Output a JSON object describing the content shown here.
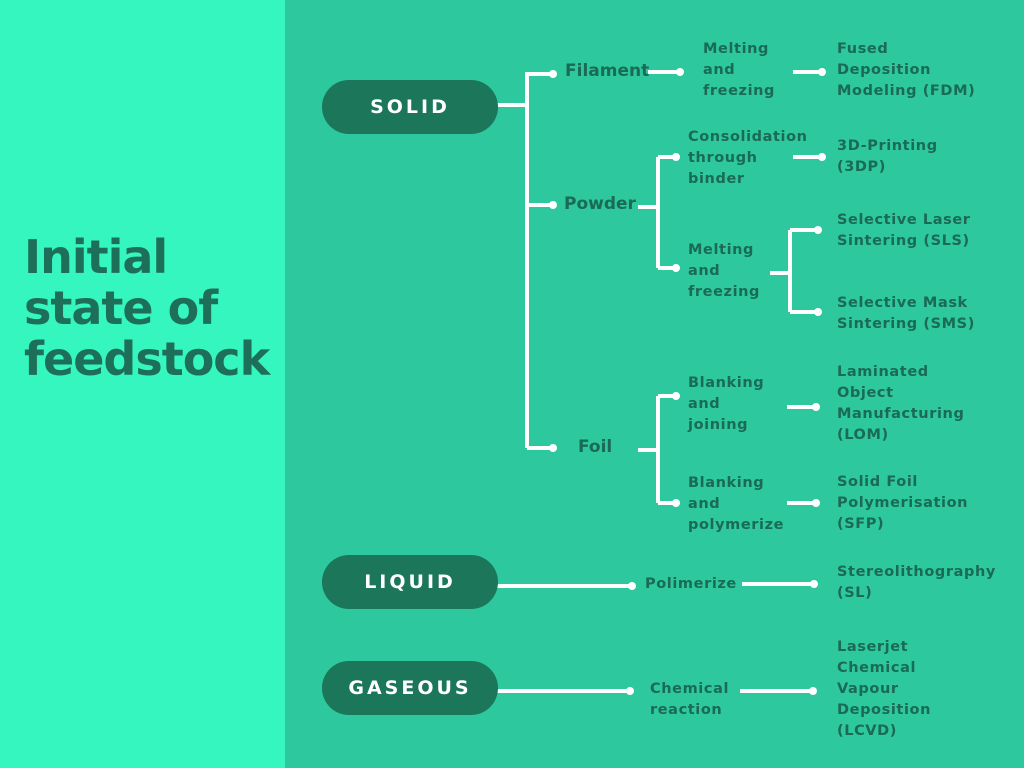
{
  "title_lines": [
    "Initial",
    "state of",
    "feedstock"
  ],
  "states": {
    "solid": "SOLID",
    "liquid": "LIQUID",
    "gaseous": "GASEOUS"
  },
  "solid": {
    "filament": {
      "label": "Filament",
      "process": [
        "Melting",
        "and",
        "freezing"
      ],
      "method": [
        "Fused",
        "Deposition",
        "Modeling (FDM)"
      ]
    },
    "powder": {
      "label": "Powder",
      "process1": [
        "Consolidation",
        "through",
        "binder"
      ],
      "method1": [
        "3D-Printing",
        "(3DP)"
      ],
      "process2": [
        "Melting",
        "and",
        "freezing"
      ],
      "method2a": [
        "Selective Laser",
        "Sintering (SLS)"
      ],
      "method2b": [
        "Selective Mask",
        "Sintering (SMS)"
      ]
    },
    "foil": {
      "label": "Foil",
      "process1": [
        "Blanking",
        "and",
        "joining"
      ],
      "method1": [
        "Laminated",
        "Object",
        "Manufacturing",
        "(LOM)"
      ],
      "process2": [
        "Blanking",
        "and",
        "polymerize"
      ],
      "method2": [
        "Solid Foil",
        "Polymerisation",
        "(SFP)"
      ]
    }
  },
  "liquid": {
    "process": [
      "Polimerize"
    ],
    "method": [
      "Stereolithography",
      "(SL)"
    ]
  },
  "gaseous": {
    "process": [
      "Chemical",
      "reaction"
    ],
    "method": [
      "Laserjet",
      "Chemical",
      "Vapour",
      "Deposition",
      "(LCVD)"
    ]
  },
  "colors": {
    "left_panel": "#36F6C0",
    "right_panel": "#2DC89E",
    "pill": "#1C7659",
    "text_dark": "#1A6A56",
    "connector": "#FFFFFF"
  }
}
